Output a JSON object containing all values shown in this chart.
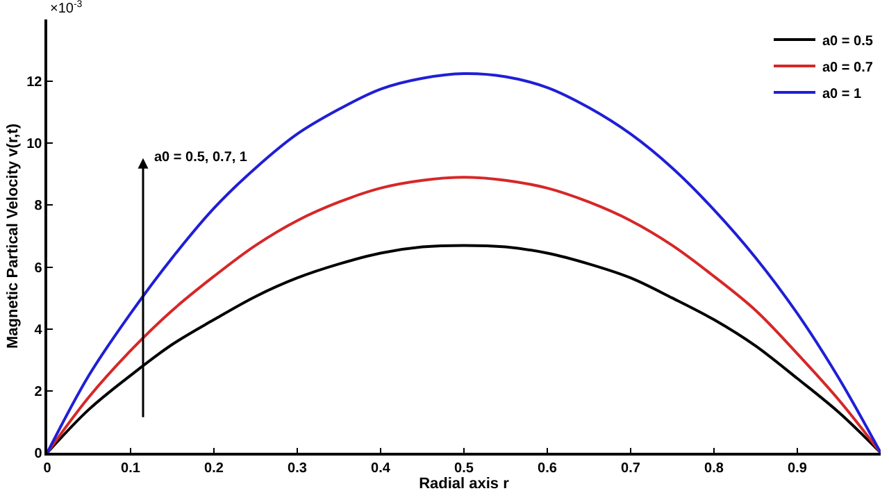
{
  "chart_data": {
    "type": "line",
    "xlabel": "Radial axis r",
    "ylabel": "Magnetic Partical Velocity v(r,t)",
    "x": [
      0,
      0.05,
      0.1,
      0.15,
      0.2,
      0.25,
      0.3,
      0.35,
      0.4,
      0.45,
      0.5,
      0.55,
      0.6,
      0.65,
      0.7,
      0.75,
      0.8,
      0.85,
      0.9,
      0.95,
      1
    ],
    "series": [
      {
        "name": "a0 = 0.5",
        "color": "#000000",
        "values": [
          0,
          1.4,
          2.5,
          3.5,
          4.3,
          5.05,
          5.65,
          6.1,
          6.45,
          6.65,
          6.7,
          6.65,
          6.45,
          6.1,
          5.65,
          5.0,
          4.3,
          3.45,
          2.4,
          1.3,
          0
        ]
      },
      {
        "name": "a0 = 0.7",
        "color": "#d62728",
        "values": [
          0,
          1.8,
          3.3,
          4.6,
          5.7,
          6.7,
          7.5,
          8.1,
          8.55,
          8.8,
          8.9,
          8.8,
          8.55,
          8.1,
          7.5,
          6.7,
          5.7,
          4.6,
          3.2,
          1.7,
          0
        ]
      },
      {
        "name": "a0 = 1",
        "color": "#1f1fd6",
        "values": [
          0,
          2.5,
          4.5,
          6.3,
          7.9,
          9.2,
          10.3,
          11.1,
          11.75,
          12.1,
          12.25,
          12.15,
          11.8,
          11.15,
          10.3,
          9.2,
          7.85,
          6.3,
          4.5,
          2.4,
          0
        ]
      }
    ],
    "xlim": [
      0,
      1
    ],
    "xticks": [
      0,
      0.1,
      0.2,
      0.3,
      0.4,
      0.5,
      0.6,
      0.7,
      0.8,
      0.9
    ],
    "ylim": [
      0,
      14
    ],
    "yticks": [
      0,
      2,
      4,
      6,
      8,
      10,
      12
    ],
    "annotations": [
      "×10$^{-3}$",
      "a0 = 0.5, 0.7, 1"
    ],
    "grid": false,
    "legend": "top right",
    "marker": "none",
    "line_style": "solid"
  }
}
